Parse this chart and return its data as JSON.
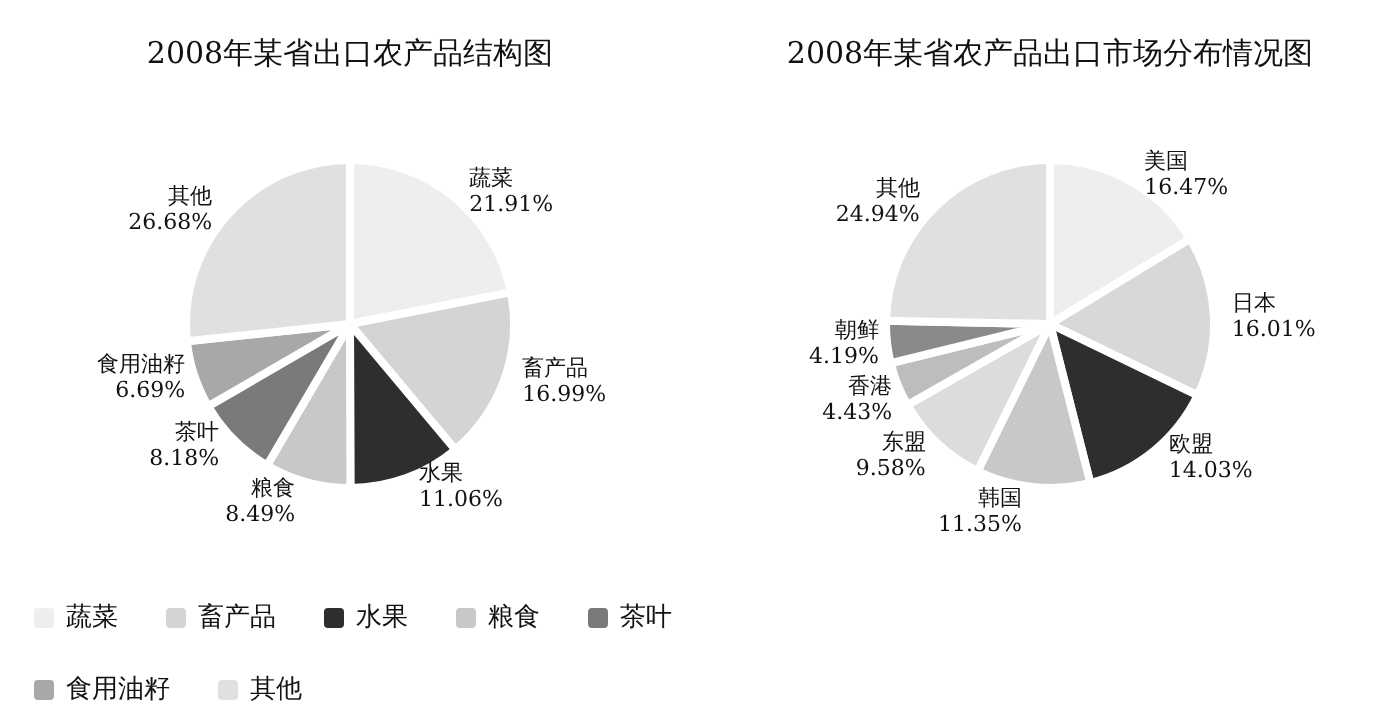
{
  "chart_data": [
    {
      "type": "pie",
      "title": "2008年某省出口农产品结构图",
      "categories": [
        "蔬菜",
        "畜产品",
        "水果",
        "粮食",
        "茶叶",
        "食用油籽",
        "其他"
      ],
      "values": [
        21.91,
        16.99,
        11.06,
        8.49,
        8.18,
        6.69,
        26.68
      ],
      "value_labels": [
        "21.91%",
        "16.99%",
        "11.06%",
        "8.49%",
        "8.18%",
        "6.69%",
        "26.68%"
      ],
      "colors": [
        "#eeeeee",
        "#d4d4d4",
        "#2e2e2e",
        "#c8c8c8",
        "#7a7a7a",
        "#a8a8a8",
        "#e0e0e0"
      ],
      "legend": "bottom"
    },
    {
      "type": "pie",
      "title": "2008年某省农产品出口市场分布情况图",
      "categories": [
        "美国",
        "日本",
        "欧盟",
        "韩国",
        "东盟",
        "香港",
        "朝鲜",
        "其他"
      ],
      "values": [
        16.47,
        16.01,
        14.03,
        11.35,
        9.58,
        4.43,
        4.19,
        24.94
      ],
      "value_labels": [
        "16.47%",
        "16.01%",
        "14.03%",
        "11.35%",
        "9.58%",
        "4.43%",
        "4.19%",
        "24.94%"
      ],
      "colors": [
        "#eeeeee",
        "#d8d8d8",
        "#2e2e2e",
        "#c8c8c8",
        "#dcdcdc",
        "#bdbdbd",
        "#8a8a8a",
        "#e0e0e0"
      ],
      "legend": false
    }
  ]
}
